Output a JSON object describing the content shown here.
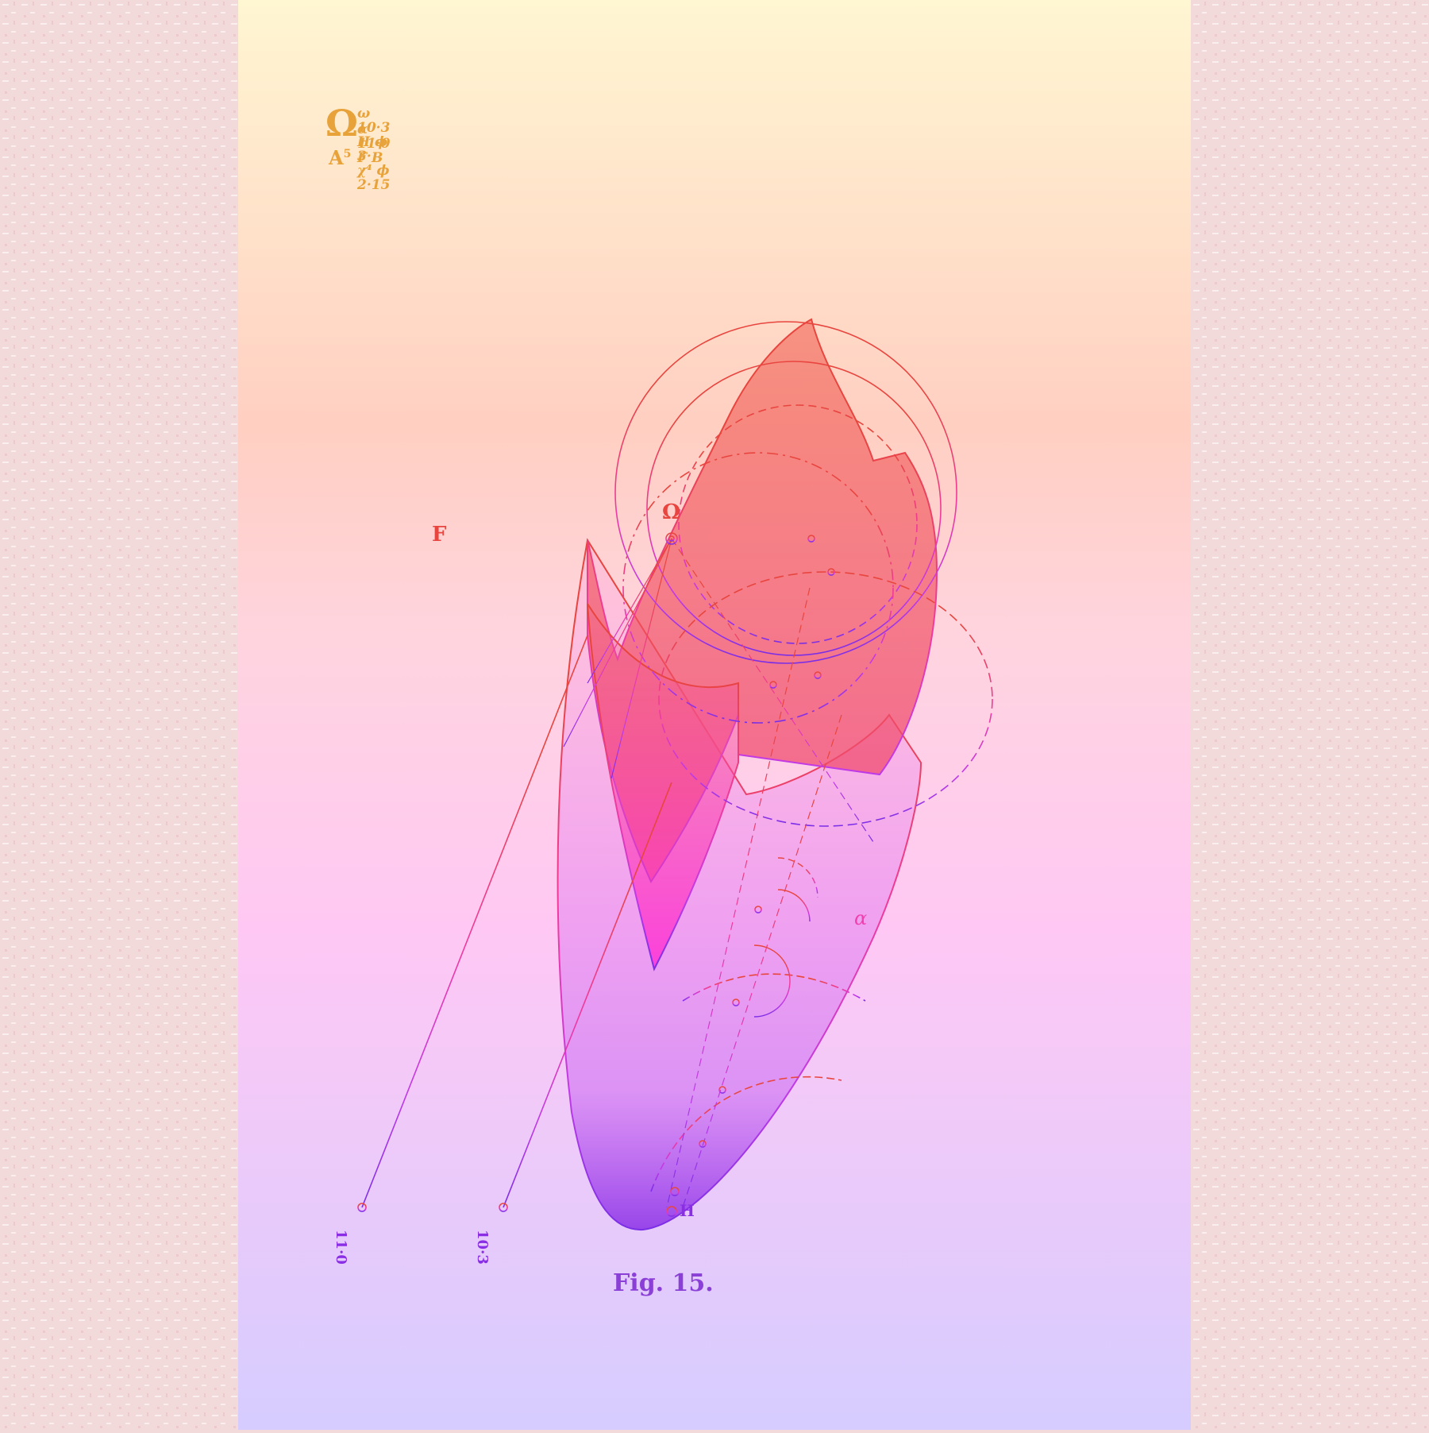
{
  "formula": {
    "main": "Ω",
    "upper": "ω 10·3 H ϕ 3· χ⁴ ϕ 2·15",
    "lower": "α 11·0 F      B",
    "sub": "A",
    "sub_exp": "5"
  },
  "labels": {
    "F": "F",
    "omega": "Ω",
    "alpha": "α",
    "H": "H",
    "tick_left": "11·0",
    "tick_right": "10·3"
  },
  "caption": "Fig. 15.",
  "colors": {
    "gradient_top": "#fff6d2",
    "gradient_mid": "#ffc0c8",
    "gradient_pink": "#ffc8f4",
    "gradient_bottom": "#d6ccff",
    "line_top": "#e8453f",
    "line_bottom": "#8a2ee6",
    "background": "#f3dada"
  }
}
